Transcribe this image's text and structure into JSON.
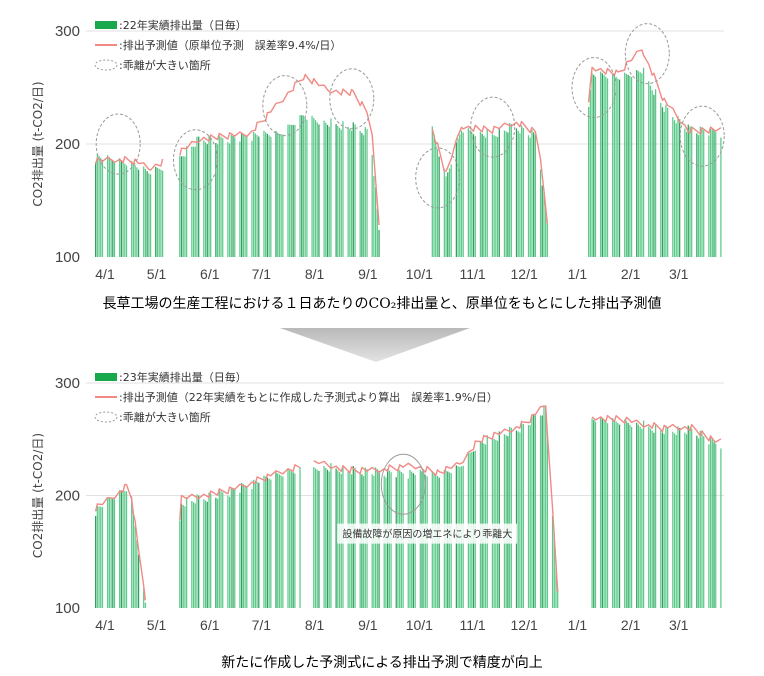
{
  "chart_data": [
    {
      "type": "bar",
      "ylabel": "CO2排出量 (t-CO2/日)",
      "ylim": [
        100,
        300
      ],
      "yticks": [
        "100",
        "200",
        "300"
      ],
      "xticks": [
        "4/1",
        "5/1",
        "6/1",
        "7/1",
        "8/1",
        "9/1",
        "10/1",
        "11/1",
        "12/1",
        "1/1",
        "2/1",
        "3/1"
      ],
      "legend": [
        {
          "label": ":22年実績排出量（日毎）",
          "kind": "bar"
        },
        {
          "label": ":排出予測値（原単位予測　誤差率9.4%/日）",
          "kind": "line"
        },
        {
          "label": ":乖離が大きい箇所",
          "kind": "ellipse"
        }
      ],
      "series": [
        {
          "segments": [
            [
              0,
              188
            ],
            [
              10,
              185
            ],
            [
              22,
              182
            ],
            [
              31,
              176
            ],
            [
              45,
              184
            ],
            [
              61,
              205
            ],
            [
              70,
              203
            ],
            [
              90,
              207
            ],
            [
              107,
              208
            ],
            [
              121,
              226
            ],
            [
              135,
              219
            ],
            [
              150,
              215
            ],
            [
              160,
              210
            ],
            [
              172,
              0
            ],
            [
              190,
              0
            ],
            [
              196,
              212
            ],
            [
              204,
              170
            ],
            [
              213,
              214
            ],
            [
              230,
              208
            ],
            [
              244,
              216
            ],
            [
              257,
              206
            ],
            [
              273,
              0
            ],
            [
              289,
              262
            ],
            [
              304,
              260
            ],
            [
              318,
              266
            ],
            [
              331,
              232
            ],
            [
              345,
              213
            ],
            [
              364,
              210
            ]
          ]
        },
        {
          "segments": [
            [
              0,
              185
            ],
            [
              10,
              187
            ],
            [
              22,
              185
            ],
            [
              31,
              178
            ],
            [
              45,
              188
            ],
            [
              61,
              205
            ],
            [
              70,
              206
            ],
            [
              90,
              210
            ],
            [
              107,
              236
            ],
            [
              121,
              260
            ],
            [
              135,
              248
            ],
            [
              150,
              245
            ],
            [
              160,
              225
            ],
            [
              172,
              0
            ],
            [
              190,
              0
            ],
            [
              196,
              214
            ],
            [
              204,
              173
            ],
            [
              213,
              216
            ],
            [
              230,
              212
            ],
            [
              244,
              220
            ],
            [
              257,
              210
            ],
            [
              273,
              0
            ],
            [
              289,
              268
            ],
            [
              304,
              262
            ],
            [
              318,
              285
            ],
            [
              331,
              238
            ],
            [
              345,
              212
            ],
            [
              364,
              212
            ]
          ]
        }
      ],
      "gaps": [
        [
          40,
          48
        ],
        [
          172,
          195
        ],
        [
          273,
          285
        ]
      ],
      "ellipses": [
        {
          "day": 10,
          "y": 200
        },
        {
          "day": 55,
          "y": 186
        },
        {
          "day": 107,
          "y": 234
        },
        {
          "day": 146,
          "y": 240
        },
        {
          "day": 196,
          "y": 170
        },
        {
          "day": 228,
          "y": 215
        },
        {
          "day": 287,
          "y": 250
        },
        {
          "day": 318,
          "y": 280
        },
        {
          "day": 350,
          "y": 207
        }
      ],
      "note": null
    },
    {
      "type": "bar",
      "ylabel": "CO2排出量 (t-CO2/日)",
      "ylim": [
        100,
        300
      ],
      "yticks": [
        "100",
        "200",
        "300"
      ],
      "xticks": [
        "4/1",
        "5/1",
        "6/1",
        "7/1",
        "8/1",
        "9/1",
        "10/1",
        "11/1",
        "12/1",
        "1/1",
        "2/1",
        "3/1"
      ],
      "legend": [
        {
          "label": ":23年実績排出量（日毎）",
          "kind": "bar"
        },
        {
          "label": ":排出予測値（22年実績をもとに作成した予測式より算出　誤差率1.9%/日）",
          "kind": "line"
        },
        {
          "label": ":乖離が大きい箇所",
          "kind": "ellipse"
        }
      ],
      "series": [
        {
          "segments": [
            [
              0,
              186
            ],
            [
              20,
              208
            ],
            [
              38,
              0
            ],
            [
              50,
              194
            ],
            [
              76,
              202
            ],
            [
              95,
              212
            ],
            [
              115,
              222
            ],
            [
              130,
              226
            ],
            [
              150,
              222
            ],
            [
              172,
              220
            ],
            [
              200,
              218
            ],
            [
              212,
              226
            ],
            [
              222,
              246
            ],
            [
              250,
              262
            ],
            [
              262,
              278
            ],
            [
              274,
              0
            ],
            [
              288,
              268
            ],
            [
              310,
              266
            ],
            [
              330,
              258
            ],
            [
              348,
              258
            ],
            [
              360,
              246
            ]
          ]
        },
        {
          "segments": [
            [
              0,
              189
            ],
            [
              20,
              210
            ],
            [
              38,
              0
            ],
            [
              50,
              197
            ],
            [
              76,
              204
            ],
            [
              95,
              214
            ],
            [
              115,
              224
            ],
            [
              130,
              229
            ],
            [
              150,
              222
            ],
            [
              170,
              224
            ],
            [
              185,
              226
            ],
            [
              200,
              220
            ],
            [
              212,
              228
            ],
            [
              222,
              248
            ],
            [
              250,
              264
            ],
            [
              262,
              280
            ],
            [
              274,
              0
            ],
            [
              288,
              270
            ],
            [
              310,
              267
            ],
            [
              330,
              260
            ],
            [
              348,
              260
            ],
            [
              360,
              248
            ]
          ]
        }
      ],
      "gaps": [
        [
          38,
          48
        ],
        [
          120,
          126
        ],
        [
          278,
          288
        ]
      ],
      "ellipses": [
        {
          "day": 176,
          "y": 210
        }
      ],
      "note": "設備故障が原因の増エネにより乖離大"
    }
  ],
  "captions": {
    "top": "長草工場の生産工程における１日あたりのCO₂排出量と、原単位をもとにした排出予測値",
    "bottom": "新たに作成した予測式による排出予測で精度が向上"
  },
  "colors": {
    "bar": "#5cc98a",
    "bar_dark": "#2f9e5e",
    "legend_bar": "#1aa84c",
    "line": "#f08a85",
    "ellipse": "#9a9a9a",
    "axis_text": "#444444",
    "grid": "#e2e2e2",
    "arrow": "#c8c8c8"
  }
}
